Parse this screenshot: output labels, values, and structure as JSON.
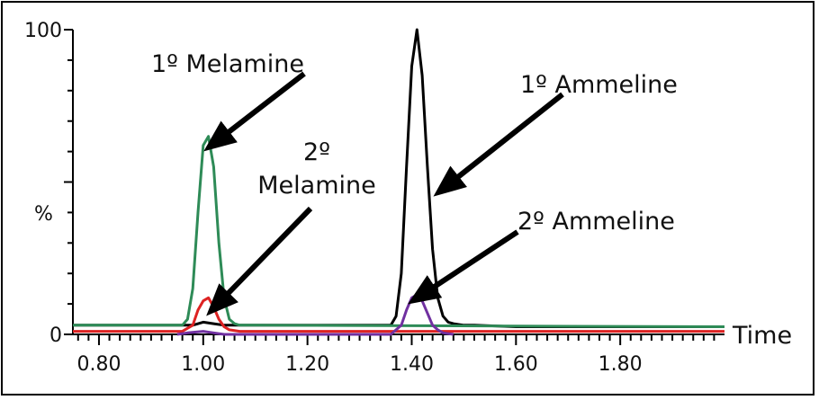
{
  "chart_data": {
    "type": "line",
    "xlabel": "Time",
    "ylabel": "%",
    "xlim": [
      0.75,
      2.0
    ],
    "ylim": [
      0,
      100
    ],
    "x_ticks": [
      "0.80",
      "1.00",
      "1.20",
      "1.40",
      "1.60",
      "1.80"
    ],
    "x_tick_values": [
      0.8,
      1.0,
      1.2,
      1.4,
      1.6,
      1.8
    ],
    "y_ticks": [
      "0",
      "100"
    ],
    "y_tick_values": [
      0,
      100
    ],
    "grid": false,
    "series": [
      {
        "color": "#000000",
        "x": [
          0.75,
          0.98,
          1.0,
          1.02,
          1.04,
          1.36,
          1.37,
          1.38,
          1.39,
          1.4,
          1.41,
          1.42,
          1.43,
          1.44,
          1.45,
          1.46,
          1.47,
          1.48,
          1.5,
          1.52,
          1.6,
          2.0
        ],
        "y": [
          3,
          3,
          4,
          3.5,
          3,
          3,
          6,
          20,
          55,
          88,
          100,
          85,
          55,
          28,
          12,
          6,
          4,
          3.5,
          3,
          3,
          2.5,
          2.5
        ]
      },
      {
        "color": "#2e8b57",
        "x": [
          0.75,
          0.96,
          0.97,
          0.98,
          0.99,
          1.0,
          1.01,
          1.02,
          1.03,
          1.04,
          1.05,
          1.06,
          1.07,
          1.1,
          2.0
        ],
        "y": [
          3,
          3,
          5,
          15,
          40,
          62,
          65,
          55,
          30,
          12,
          5,
          3.5,
          3,
          3,
          2.5
        ]
      },
      {
        "color": "#dd2222",
        "x": [
          0.75,
          0.96,
          0.98,
          0.99,
          1.0,
          1.01,
          1.02,
          1.03,
          1.04,
          1.05,
          1.07,
          2.0
        ],
        "y": [
          1,
          1,
          3,
          8,
          11,
          12,
          9,
          5,
          2.5,
          1.5,
          1,
          1
        ]
      },
      {
        "color": "#7030a0",
        "x": [
          0.95,
          0.97,
          1.0,
          1.02,
          1.04,
          1.36,
          1.38,
          1.39,
          1.4,
          1.41,
          1.42,
          1.43,
          1.44,
          1.45,
          1.46,
          1.48
        ],
        "y": [
          0,
          0.5,
          1,
          0.5,
          0,
          0,
          3,
          8,
          12,
          13,
          11,
          7,
          3,
          1.5,
          0.5,
          0
        ],
        "offset_y": 0
      }
    ],
    "annotations": [
      {
        "lines": [
          "1º Melamine"
        ],
        "points_to": [
          1.005,
          65
        ]
      },
      {
        "lines": [
          "2º",
          "Melamine"
        ],
        "points_to": [
          1.01,
          12
        ]
      },
      {
        "lines": [
          "1º Ammeline"
        ],
        "points_to": [
          1.43,
          48
        ]
      },
      {
        "lines": [
          "2º Ammeline"
        ],
        "points_to": [
          1.41,
          13
        ]
      }
    ]
  }
}
